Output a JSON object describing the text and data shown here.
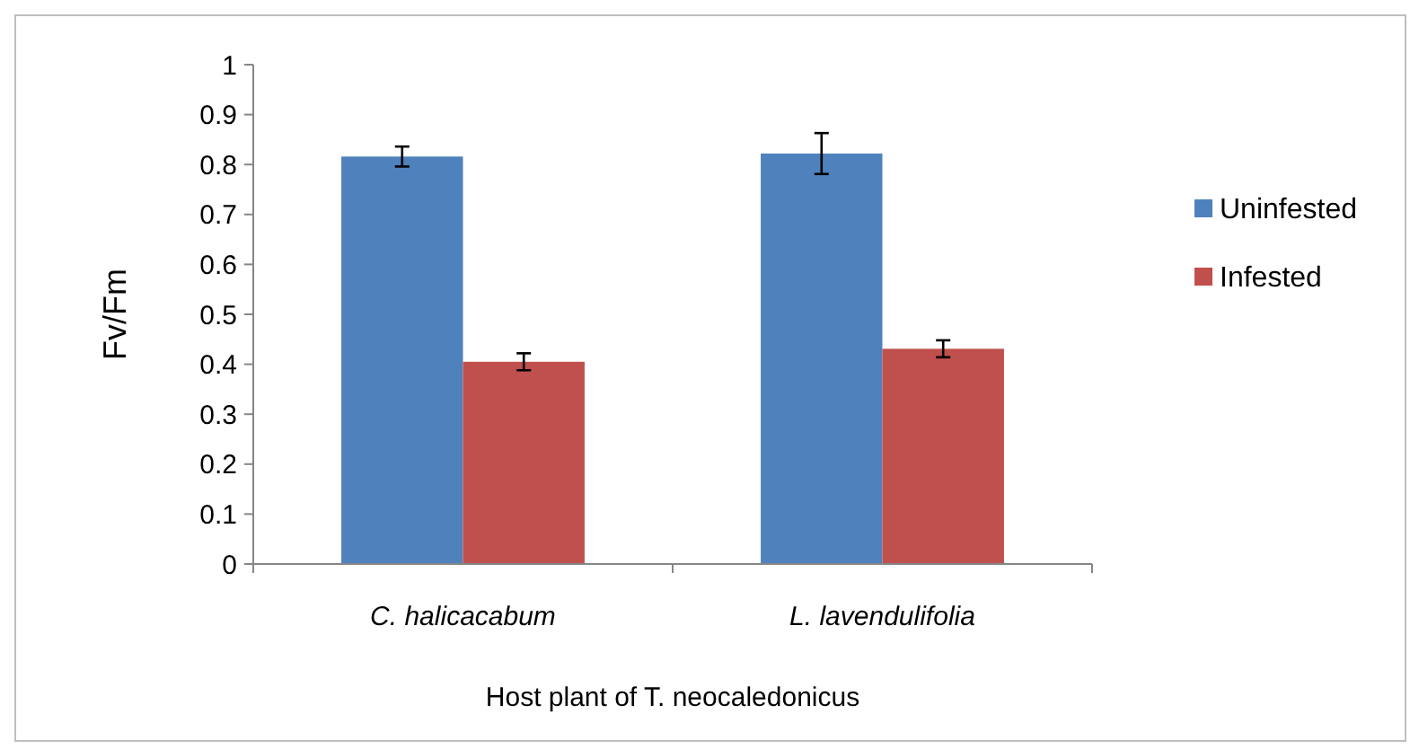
{
  "chart_data": {
    "type": "bar",
    "xlabel": "Host plant of T. neocaledonicus",
    "ylabel": "Fv/Fm",
    "categories": [
      "C. halicacabum",
      "L. lavendulifolia"
    ],
    "series": [
      {
        "name": "Uninfested",
        "color": "#4f81bd",
        "values": [
          0.816,
          0.822
        ],
        "errors": [
          0.02,
          0.041
        ]
      },
      {
        "name": "Infested",
        "color": "#c0504d",
        "values": [
          0.405,
          0.431
        ],
        "errors": [
          0.017,
          0.017
        ]
      }
    ],
    "ylim": [
      0,
      1
    ],
    "yticks": [
      0,
      0.1,
      0.2,
      0.3,
      0.4,
      0.5,
      0.6,
      0.7,
      0.8,
      0.9,
      1
    ],
    "legend": "right",
    "grid": false
  }
}
